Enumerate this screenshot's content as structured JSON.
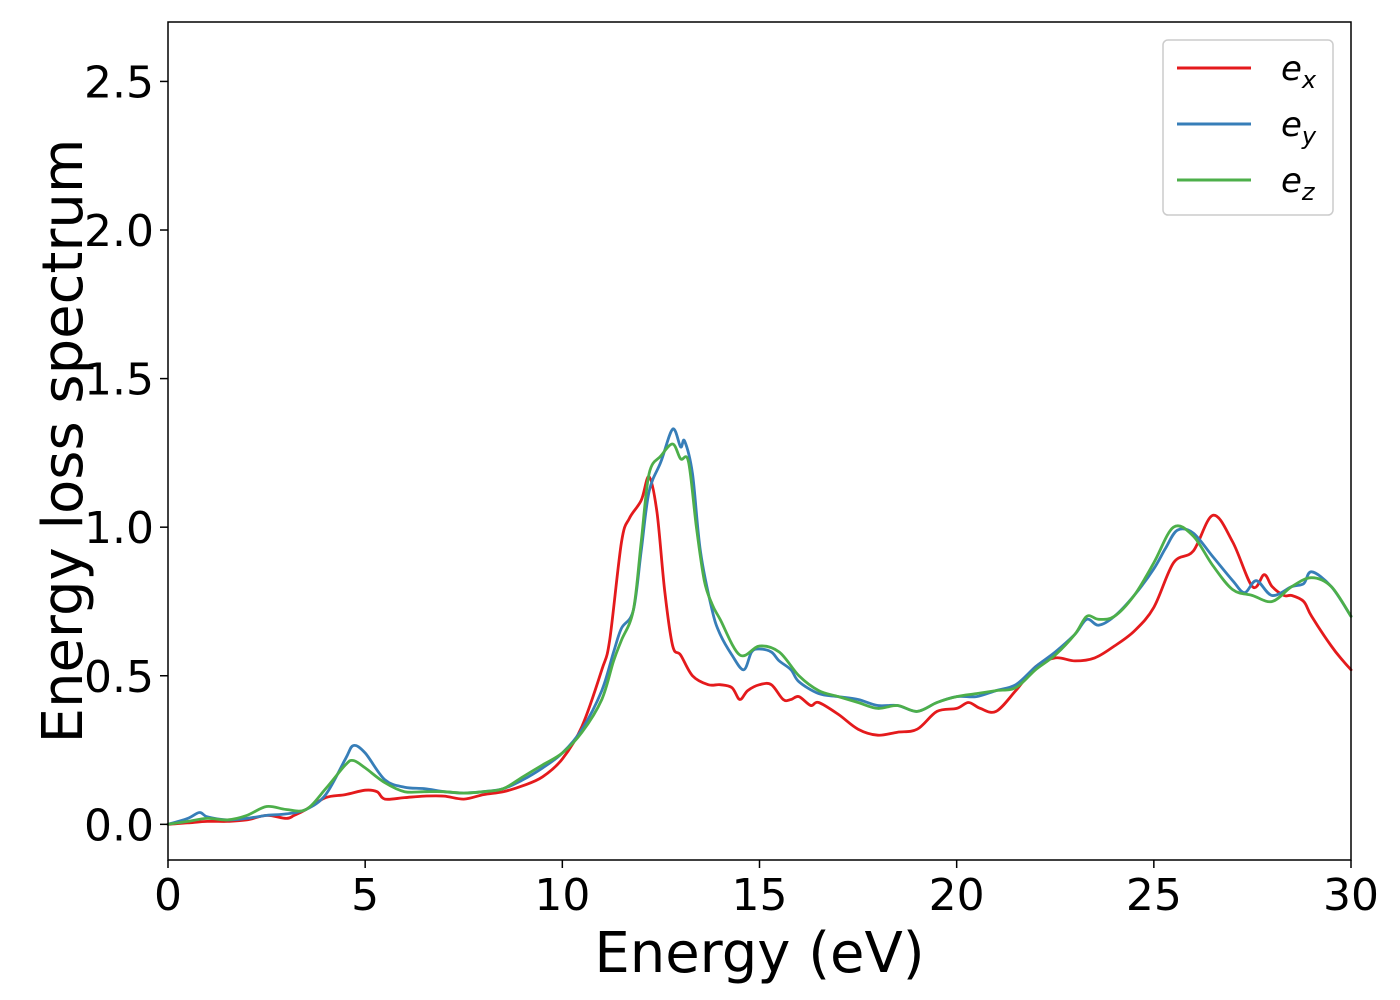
{
  "chart_data": {
    "type": "line",
    "xlabel": "Energy (eV)",
    "ylabel": "Energy loss spectrum",
    "xlim": [
      0,
      30
    ],
    "ylim": [
      -0.12,
      2.7
    ],
    "xticks": [
      0,
      5,
      10,
      15,
      20,
      25,
      30
    ],
    "yticks": [
      0.0,
      0.5,
      1.0,
      1.5,
      2.0,
      2.5
    ],
    "xtick_labels": [
      "0",
      "5",
      "10",
      "15",
      "20",
      "25",
      "30"
    ],
    "ytick_labels": [
      "0.0",
      "0.5",
      "1.0",
      "1.5",
      "2.0",
      "2.5"
    ],
    "grid": false,
    "legend": {
      "placement": "top-right",
      "entries": [
        {
          "base": "e",
          "sub": "x",
          "color": "#e41a1c"
        },
        {
          "base": "e",
          "sub": "y",
          "color": "#377eb8"
        },
        {
          "base": "e",
          "sub": "z",
          "color": "#4daf4a"
        }
      ]
    },
    "series": [
      {
        "color": "#e41a1c",
        "x": [
          0,
          0.5,
          1.0,
          1.5,
          2.0,
          2.5,
          3.0,
          3.2,
          3.5,
          4.0,
          4.5,
          5.0,
          5.3,
          5.5,
          6.0,
          6.5,
          7.0,
          7.5,
          8.0,
          8.5,
          9.0,
          9.5,
          10.0,
          10.5,
          11.0,
          11.2,
          11.5,
          11.7,
          12.0,
          12.2,
          12.4,
          12.6,
          12.8,
          13.0,
          13.3,
          13.7,
          14.0,
          14.3,
          14.5,
          14.7,
          15.0,
          15.3,
          15.6,
          15.8,
          16.0,
          16.3,
          16.5,
          17.0,
          17.5,
          18.0,
          18.5,
          19.0,
          19.5,
          20.0,
          20.3,
          20.6,
          21.0,
          21.5,
          22.0,
          22.5,
          23.0,
          23.5,
          24.0,
          24.5,
          25.0,
          25.5,
          26.0,
          26.5,
          27.0,
          27.5,
          27.8,
          28.0,
          28.3,
          28.5,
          28.8,
          29.0,
          29.5,
          29.8,
          30.0
        ],
        "y": [
          0.0,
          0.005,
          0.01,
          0.01,
          0.015,
          0.03,
          0.02,
          0.03,
          0.05,
          0.09,
          0.1,
          0.115,
          0.11,
          0.085,
          0.09,
          0.095,
          0.095,
          0.085,
          0.1,
          0.11,
          0.13,
          0.16,
          0.22,
          0.33,
          0.52,
          0.62,
          0.95,
          1.03,
          1.09,
          1.17,
          1.05,
          0.78,
          0.6,
          0.57,
          0.5,
          0.47,
          0.47,
          0.46,
          0.42,
          0.45,
          0.47,
          0.47,
          0.42,
          0.42,
          0.43,
          0.4,
          0.41,
          0.37,
          0.32,
          0.3,
          0.31,
          0.32,
          0.38,
          0.39,
          0.41,
          0.39,
          0.38,
          0.45,
          0.53,
          0.56,
          0.55,
          0.56,
          0.6,
          0.65,
          0.73,
          0.88,
          0.92,
          1.04,
          0.95,
          0.8,
          0.84,
          0.8,
          0.77,
          0.77,
          0.75,
          0.7,
          0.6,
          0.55,
          0.52
        ]
      },
      {
        "color": "#377eb8",
        "x": [
          0,
          0.5,
          0.8,
          1.0,
          1.5,
          2.0,
          2.5,
          3.0,
          3.5,
          4.0,
          4.5,
          4.7,
          5.0,
          5.5,
          6.0,
          6.5,
          7.0,
          7.5,
          8.0,
          8.5,
          9.0,
          9.5,
          10.0,
          10.5,
          11.0,
          11.3,
          11.5,
          11.8,
          12.0,
          12.2,
          12.5,
          12.8,
          13.0,
          13.1,
          13.3,
          13.5,
          13.8,
          14.0,
          14.3,
          14.6,
          14.8,
          15.0,
          15.3,
          15.5,
          15.8,
          16.0,
          16.5,
          17.0,
          17.5,
          18.0,
          18.5,
          19.0,
          19.5,
          20.0,
          20.5,
          21.0,
          21.5,
          22.0,
          22.5,
          23.0,
          23.3,
          23.6,
          24.0,
          24.5,
          25.0,
          25.3,
          25.6,
          26.0,
          26.5,
          27.0,
          27.3,
          27.6,
          28.0,
          28.5,
          28.8,
          29.0,
          29.5,
          30.0
        ],
        "y": [
          0.0,
          0.02,
          0.04,
          0.025,
          0.015,
          0.02,
          0.03,
          0.035,
          0.05,
          0.1,
          0.22,
          0.265,
          0.24,
          0.15,
          0.125,
          0.12,
          0.11,
          0.105,
          0.11,
          0.12,
          0.15,
          0.19,
          0.24,
          0.32,
          0.45,
          0.58,
          0.66,
          0.72,
          0.92,
          1.12,
          1.22,
          1.33,
          1.27,
          1.29,
          1.18,
          0.92,
          0.72,
          0.64,
          0.57,
          0.52,
          0.58,
          0.59,
          0.58,
          0.55,
          0.52,
          0.48,
          0.44,
          0.43,
          0.42,
          0.4,
          0.4,
          0.38,
          0.41,
          0.43,
          0.43,
          0.45,
          0.47,
          0.53,
          0.58,
          0.64,
          0.69,
          0.67,
          0.7,
          0.77,
          0.86,
          0.93,
          0.99,
          0.98,
          0.9,
          0.82,
          0.78,
          0.82,
          0.77,
          0.8,
          0.81,
          0.85,
          0.8,
          0.7
        ]
      },
      {
        "color": "#4daf4a",
        "x": [
          0,
          0.5,
          1.0,
          1.5,
          2.0,
          2.5,
          3.0,
          3.5,
          4.0,
          4.5,
          4.7,
          5.0,
          5.5,
          6.0,
          6.5,
          7.0,
          7.5,
          8.0,
          8.5,
          9.0,
          9.5,
          10.0,
          10.5,
          11.0,
          11.3,
          11.5,
          11.8,
          12.0,
          12.2,
          12.5,
          12.8,
          13.0,
          13.2,
          13.4,
          13.6,
          13.8,
          14.0,
          14.5,
          15.0,
          15.5,
          16.0,
          16.5,
          17.0,
          17.5,
          18.0,
          18.5,
          19.0,
          19.5,
          20.0,
          20.5,
          21.0,
          21.5,
          22.0,
          22.5,
          23.0,
          23.3,
          23.6,
          24.0,
          24.5,
          25.0,
          25.5,
          26.0,
          26.5,
          27.0,
          27.5,
          28.0,
          28.5,
          29.0,
          29.5,
          30.0
        ],
        "y": [
          0.0,
          0.01,
          0.02,
          0.015,
          0.03,
          0.06,
          0.05,
          0.05,
          0.12,
          0.2,
          0.215,
          0.19,
          0.14,
          0.11,
          0.11,
          0.11,
          0.105,
          0.11,
          0.12,
          0.16,
          0.2,
          0.24,
          0.31,
          0.42,
          0.55,
          0.62,
          0.72,
          0.95,
          1.18,
          1.24,
          1.28,
          1.23,
          1.22,
          1.0,
          0.82,
          0.74,
          0.69,
          0.57,
          0.6,
          0.58,
          0.5,
          0.45,
          0.43,
          0.41,
          0.39,
          0.4,
          0.38,
          0.41,
          0.43,
          0.44,
          0.45,
          0.46,
          0.52,
          0.57,
          0.64,
          0.7,
          0.69,
          0.7,
          0.77,
          0.88,
          1.0,
          0.97,
          0.87,
          0.79,
          0.77,
          0.75,
          0.8,
          0.83,
          0.8,
          0.7
        ]
      }
    ]
  }
}
